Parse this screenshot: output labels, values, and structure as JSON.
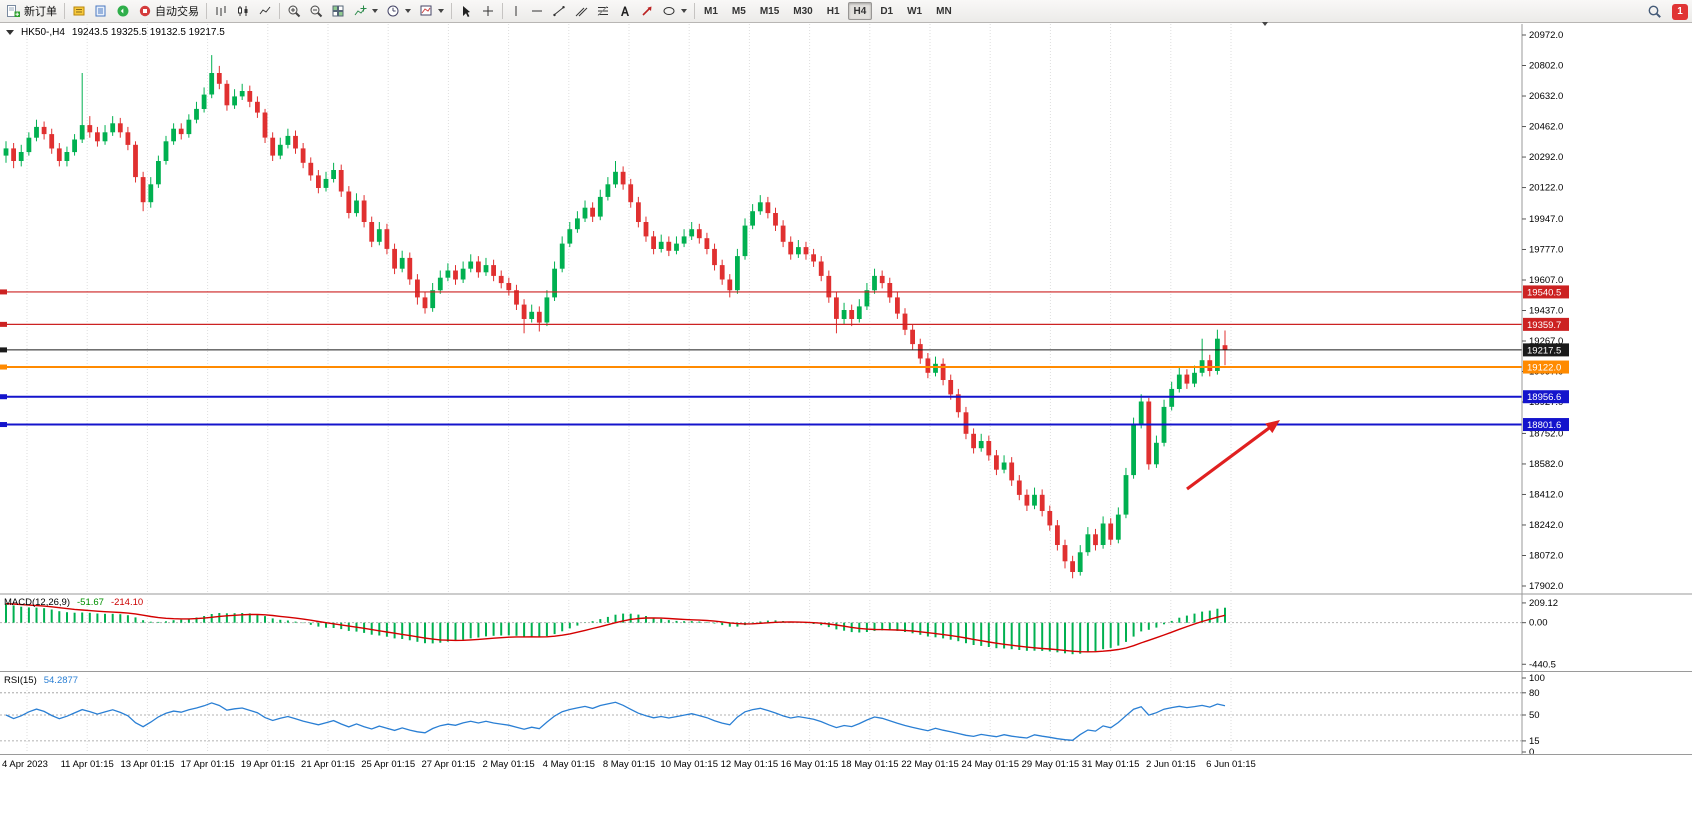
{
  "toolbar": {
    "new_order_label": "新订单",
    "auto_trading_label": "自动交易",
    "timeframes": [
      "M1",
      "M5",
      "M15",
      "M30",
      "H1",
      "H4",
      "D1",
      "W1",
      "MN"
    ],
    "active_timeframe": "H4",
    "notification_count": "1"
  },
  "chart_header": {
    "symbol": "HK50-,H4",
    "ohlc": "19243.5 19325.5 19132.5 19217.5"
  },
  "chart_data": {
    "type": "candlestick",
    "title": "HK50-,H4",
    "current_bar": {
      "open": 19243.5,
      "high": 19325.5,
      "low": 19132.5,
      "close": 19217.5
    },
    "colors": {
      "up": "#00b050",
      "down": "#e03030",
      "signal": "#d40000",
      "rsi": "#2a7fd4"
    },
    "y_axis": {
      "max": 20972,
      "min": 17902,
      "ticks": [
        "20972.0",
        "20802.0",
        "20632.0",
        "20462.0",
        "20292.0",
        "20122.0",
        "19947.0",
        "19777.0",
        "19607.0",
        "19437.0",
        "19267.0",
        "19097.0",
        "18927.0",
        "18752.0",
        "18582.0",
        "18412.0",
        "18242.0",
        "18072.0",
        "17902.0"
      ]
    },
    "x_axis": {
      "labels": [
        "4 Apr 2023",
        "11 Apr 01:15",
        "13 Apr 01:15",
        "17 Apr 01:15",
        "19 Apr 01:15",
        "21 Apr 01:15",
        "25 Apr 01:15",
        "27 Apr 01:15",
        "2 May 01:15",
        "4 May 01:15",
        "8 May 01:15",
        "10 May 01:15",
        "12 May 01:15",
        "16 May 01:15",
        "18 May 01:15",
        "22 May 01:15",
        "24 May 01:15",
        "29 May 01:15",
        "31 May 01:15",
        "2 Jun 01:15",
        "6 Jun 01:15"
      ]
    },
    "hlines": [
      {
        "price": 19540.5,
        "label": "19540.5",
        "color": "#cc2222",
        "width": 1.2
      },
      {
        "price": 19359.7,
        "label": "19359.7",
        "color": "#cc2222",
        "width": 1.2
      },
      {
        "price": 19217.5,
        "label": "19217.5",
        "color": "#1a1a1a",
        "width": 1
      },
      {
        "price": 19122.0,
        "label": "19122.0",
        "color": "#ff8a00",
        "width": 2
      },
      {
        "price": 18956.6,
        "label": "18956.6",
        "color": "#1414cc",
        "width": 2
      },
      {
        "price": 18801.6,
        "label": "18801.6",
        "color": "#1414cc",
        "width": 2
      }
    ],
    "arrow": {
      "from": [
        1187,
        489
      ],
      "to": [
        1280,
        420
      ],
      "color": "#e02020"
    },
    "indicators": {
      "macd": {
        "label": "MACD(12,26,9)",
        "main_value": "-51.67",
        "signal_value": "-214.10",
        "scale": [
          "209.12",
          "0.00",
          "-440.5"
        ],
        "ylim": [
          -480,
          240
        ]
      },
      "rsi": {
        "label": "RSI(15)",
        "value": "54.2877",
        "scale": [
          "100",
          "80",
          "50",
          "15",
          "0"
        ],
        "levels": [
          80,
          50,
          15
        ]
      }
    },
    "candles": [
      [
        20300,
        20380,
        20260,
        20340
      ],
      [
        20340,
        20370,
        20230,
        20270
      ],
      [
        20270,
        20360,
        20240,
        20320
      ],
      [
        20320,
        20430,
        20300,
        20400
      ],
      [
        20400,
        20500,
        20380,
        20460
      ],
      [
        20460,
        20490,
        20390,
        20420
      ],
      [
        20420,
        20450,
        20310,
        20340
      ],
      [
        20340,
        20370,
        20240,
        20270
      ],
      [
        20270,
        20350,
        20240,
        20320
      ],
      [
        20320,
        20420,
        20300,
        20390
      ],
      [
        20390,
        20760,
        20370,
        20470
      ],
      [
        20470,
        20520,
        20400,
        20430
      ],
      [
        20430,
        20460,
        20350,
        20380
      ],
      [
        20380,
        20470,
        20360,
        20430
      ],
      [
        20430,
        20520,
        20410,
        20480
      ],
      [
        20480,
        20510,
        20400,
        20430
      ],
      [
        20430,
        20460,
        20330,
        20360
      ],
      [
        20360,
        20380,
        20150,
        20180
      ],
      [
        20180,
        20210,
        19990,
        20040
      ],
      [
        20040,
        20180,
        20010,
        20140
      ],
      [
        20140,
        20300,
        20120,
        20270
      ],
      [
        20270,
        20410,
        20250,
        20380
      ],
      [
        20380,
        20480,
        20360,
        20450
      ],
      [
        20450,
        20480,
        20390,
        20420
      ],
      [
        20420,
        20530,
        20400,
        20500
      ],
      [
        20500,
        20600,
        20480,
        20560
      ],
      [
        20560,
        20680,
        20540,
        20640
      ],
      [
        20640,
        20860,
        20620,
        20760
      ],
      [
        20760,
        20800,
        20670,
        20700
      ],
      [
        20700,
        20720,
        20550,
        20580
      ],
      [
        20580,
        20670,
        20560,
        20630
      ],
      [
        20630,
        20700,
        20610,
        20660
      ],
      [
        20660,
        20690,
        20570,
        20600
      ],
      [
        20600,
        20630,
        20510,
        20540
      ],
      [
        20540,
        20560,
        20370,
        20400
      ],
      [
        20400,
        20430,
        20270,
        20300
      ],
      [
        20300,
        20400,
        20280,
        20360
      ],
      [
        20360,
        20450,
        20340,
        20410
      ],
      [
        20410,
        20440,
        20310,
        20340
      ],
      [
        20340,
        20370,
        20230,
        20260
      ],
      [
        20260,
        20290,
        20160,
        20190
      ],
      [
        20190,
        20220,
        20090,
        20120
      ],
      [
        20120,
        20210,
        20100,
        20170
      ],
      [
        20170,
        20260,
        20150,
        20220
      ],
      [
        20220,
        20250,
        20070,
        20100
      ],
      [
        20100,
        20130,
        19950,
        19980
      ],
      [
        19980,
        20090,
        19960,
        20050
      ],
      [
        20050,
        20080,
        19900,
        19930
      ],
      [
        19930,
        19960,
        19790,
        19820
      ],
      [
        19820,
        19930,
        19800,
        19890
      ],
      [
        19890,
        19920,
        19750,
        19780
      ],
      [
        19780,
        19810,
        19640,
        19670
      ],
      [
        19670,
        19770,
        19650,
        19730
      ],
      [
        19730,
        19760,
        19580,
        19610
      ],
      [
        19610,
        19640,
        19470,
        19510
      ],
      [
        19510,
        19540,
        19420,
        19450
      ],
      [
        19450,
        19590,
        19430,
        19550
      ],
      [
        19550,
        19660,
        19530,
        19620
      ],
      [
        19620,
        19700,
        19600,
        19660
      ],
      [
        19660,
        19690,
        19580,
        19610
      ],
      [
        19610,
        19710,
        19590,
        19670
      ],
      [
        19670,
        19750,
        19650,
        19710
      ],
      [
        19710,
        19740,
        19620,
        19650
      ],
      [
        19650,
        19730,
        19630,
        19690
      ],
      [
        19690,
        19720,
        19600,
        19630
      ],
      [
        19630,
        19660,
        19560,
        19590
      ],
      [
        19590,
        19620,
        19520,
        19550
      ],
      [
        19550,
        19580,
        19440,
        19470
      ],
      [
        19470,
        19500,
        19310,
        19390
      ],
      [
        19390,
        19470,
        19370,
        19430
      ],
      [
        19430,
        19460,
        19320,
        19370
      ],
      [
        19370,
        19550,
        19350,
        19510
      ],
      [
        19510,
        19710,
        19490,
        19670
      ],
      [
        19670,
        19850,
        19650,
        19810
      ],
      [
        19810,
        19930,
        19790,
        19890
      ],
      [
        19890,
        19990,
        19870,
        19950
      ],
      [
        19950,
        20050,
        19930,
        20010
      ],
      [
        20010,
        20040,
        19930,
        19960
      ],
      [
        19960,
        20110,
        19940,
        20070
      ],
      [
        20070,
        20180,
        20050,
        20140
      ],
      [
        20140,
        20270,
        20120,
        20210
      ],
      [
        20210,
        20240,
        20110,
        20140
      ],
      [
        20140,
        20170,
        20010,
        20040
      ],
      [
        20040,
        20070,
        19900,
        19930
      ],
      [
        19930,
        19960,
        19820,
        19850
      ],
      [
        19850,
        19880,
        19750,
        19780
      ],
      [
        19780,
        19860,
        19760,
        19820
      ],
      [
        19820,
        19850,
        19740,
        19770
      ],
      [
        19770,
        19850,
        19750,
        19810
      ],
      [
        19810,
        19890,
        19790,
        19850
      ],
      [
        19850,
        19930,
        19830,
        19890
      ],
      [
        19890,
        19920,
        19810,
        19840
      ],
      [
        19840,
        19870,
        19750,
        19780
      ],
      [
        19780,
        19810,
        19660,
        19690
      ],
      [
        19690,
        19720,
        19580,
        19610
      ],
      [
        19610,
        19640,
        19510,
        19550
      ],
      [
        19550,
        19780,
        19530,
        19740
      ],
      [
        19740,
        19950,
        19720,
        19910
      ],
      [
        19910,
        20030,
        19890,
        19990
      ],
      [
        19990,
        20080,
        19970,
        20040
      ],
      [
        20040,
        20070,
        19950,
        19980
      ],
      [
        19980,
        20010,
        19880,
        19910
      ],
      [
        19910,
        19940,
        19790,
        19820
      ],
      [
        19820,
        19850,
        19720,
        19750
      ],
      [
        19750,
        19830,
        19730,
        19790
      ],
      [
        19790,
        19820,
        19720,
        19750
      ],
      [
        19750,
        19780,
        19680,
        19710
      ],
      [
        19710,
        19740,
        19600,
        19630
      ],
      [
        19630,
        19660,
        19480,
        19510
      ],
      [
        19510,
        19540,
        19310,
        19390
      ],
      [
        19390,
        19480,
        19360,
        19440
      ],
      [
        19440,
        19470,
        19350,
        19390
      ],
      [
        19390,
        19500,
        19370,
        19460
      ],
      [
        19460,
        19590,
        19440,
        19550
      ],
      [
        19550,
        19670,
        19530,
        19630
      ],
      [
        19630,
        19660,
        19560,
        19590
      ],
      [
        19590,
        19620,
        19480,
        19510
      ],
      [
        19510,
        19540,
        19390,
        19420
      ],
      [
        19420,
        19450,
        19300,
        19330
      ],
      [
        19330,
        19360,
        19220,
        19250
      ],
      [
        19250,
        19280,
        19140,
        19170
      ],
      [
        19170,
        19200,
        19060,
        19090
      ],
      [
        19090,
        19180,
        19070,
        19140
      ],
      [
        19140,
        19170,
        19020,
        19050
      ],
      [
        19050,
        19080,
        18940,
        18970
      ],
      [
        18970,
        19000,
        18840,
        18870
      ],
      [
        18870,
        18900,
        18720,
        18750
      ],
      [
        18750,
        18780,
        18640,
        18670
      ],
      [
        18670,
        18750,
        18650,
        18710
      ],
      [
        18710,
        18740,
        18600,
        18630
      ],
      [
        18630,
        18660,
        18520,
        18550
      ],
      [
        18550,
        18630,
        18530,
        18590
      ],
      [
        18590,
        18620,
        18460,
        18490
      ],
      [
        18490,
        18520,
        18380,
        18410
      ],
      [
        18410,
        18440,
        18320,
        18350
      ],
      [
        18350,
        18450,
        18330,
        18410
      ],
      [
        18410,
        18440,
        18290,
        18320
      ],
      [
        18320,
        18350,
        18210,
        18240
      ],
      [
        18240,
        18270,
        18100,
        18130
      ],
      [
        18130,
        18160,
        18000,
        18040
      ],
      [
        18040,
        18070,
        17945,
        17980
      ],
      [
        17980,
        18130,
        17960,
        18090
      ],
      [
        18090,
        18230,
        18070,
        18190
      ],
      [
        18190,
        18220,
        18100,
        18130
      ],
      [
        18130,
        18290,
        18110,
        18250
      ],
      [
        18250,
        18280,
        18130,
        18160
      ],
      [
        18160,
        18340,
        18140,
        18300
      ],
      [
        18300,
        18560,
        18280,
        18520
      ],
      [
        18520,
        18840,
        18500,
        18800
      ],
      [
        18800,
        18970,
        18780,
        18930
      ],
      [
        18930,
        18950,
        18550,
        18580
      ],
      [
        18580,
        18740,
        18560,
        18700
      ],
      [
        18700,
        18940,
        18680,
        18900
      ],
      [
        18900,
        19040,
        18880,
        19000
      ],
      [
        19000,
        19120,
        18980,
        19080
      ],
      [
        19080,
        19110,
        19000,
        19030
      ],
      [
        19030,
        19130,
        19010,
        19090
      ],
      [
        19090,
        19280,
        19070,
        19160
      ],
      [
        19160,
        19190,
        19070,
        19100
      ],
      [
        19100,
        19330,
        19080,
        19280
      ],
      [
        19243.5,
        19325.5,
        19132.5,
        19217.5
      ]
    ]
  }
}
